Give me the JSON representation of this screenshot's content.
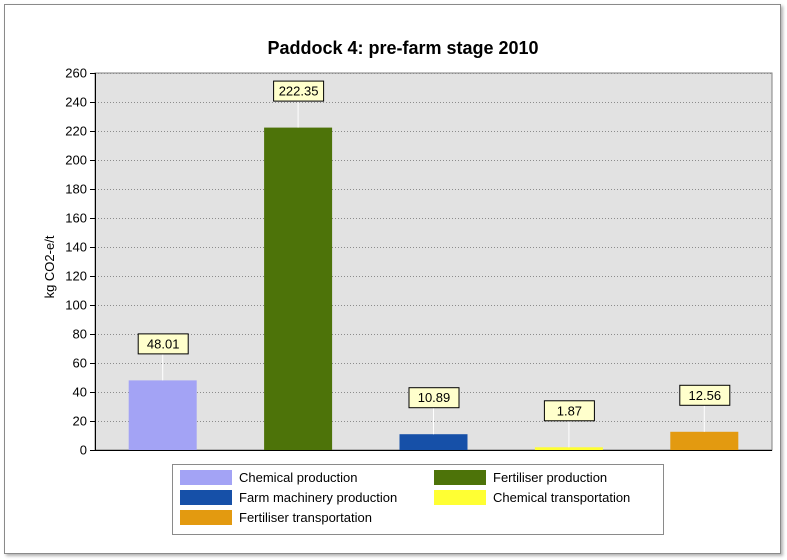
{
  "chart_data": {
    "type": "bar",
    "title": "Paddock 4: pre-farm stage 2010",
    "xlabel": "",
    "ylabel": "kg CO2-e/t",
    "ylim": [
      0,
      260
    ],
    "yticks": [
      0,
      20,
      40,
      60,
      80,
      100,
      120,
      140,
      160,
      180,
      200,
      220,
      240,
      260
    ],
    "grid": true,
    "legend_position": "bottom",
    "categories": [
      "Chemical production",
      "Fertiliser production",
      "Farm machinery production",
      "Chemical transportation",
      "Fertiliser transportation"
    ],
    "values": [
      48.01,
      222.35,
      10.89,
      1.87,
      12.56
    ],
    "labels": [
      "48.01",
      "222.35",
      "10.89",
      "1.87",
      "12.56"
    ],
    "colors": [
      "#a3a3f5",
      "#4d7309",
      "#1650a8",
      "#ffff33",
      "#e39a10"
    ],
    "plot_background": "#e2e2e2"
  }
}
